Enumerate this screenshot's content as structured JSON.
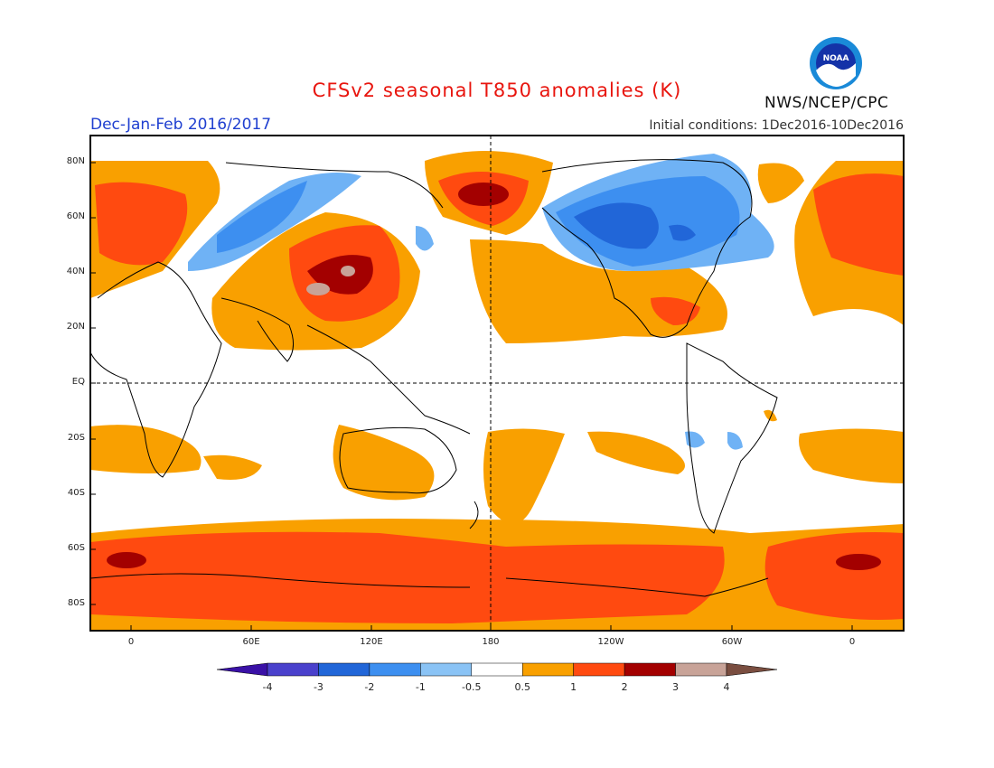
{
  "header": {
    "title": "CFSv2 seasonal T850 anomalies (K)",
    "period": "Dec-Jan-Feb 2016/2017",
    "initial_conditions": "Initial conditions: 1Dec2016-10Dec2016",
    "agency": "NWS/NCEP/CPC",
    "logo_text": "NOAA"
  },
  "map": {
    "lat_labels": [
      "80N",
      "60N",
      "40N",
      "20N",
      "EQ",
      "20S",
      "40S",
      "60S",
      "80S"
    ],
    "lon_labels": [
      "0",
      "60E",
      "120E",
      "180",
      "120W",
      "60W",
      "0"
    ],
    "colors": {
      "ocean_white": "#ffffff",
      "weak_warm": "#f9a000",
      "warm": "#ff4a10",
      "strong_warm": "#a30000",
      "very_warm": "#c8a398",
      "weak_cool": "#6fb2f5",
      "cool": "#3d8ff0",
      "strong_cool": "#2166d8",
      "very_cool": "#2d3fc0"
    }
  },
  "colorbar": {
    "labels": [
      "-4",
      "-3",
      "-2",
      "-1",
      "-0.5",
      "0.5",
      "1",
      "2",
      "3",
      "4"
    ],
    "colors": [
      "#3a11a6",
      "#4a41cc",
      "#2166d8",
      "#3d8ff0",
      "#8ac3f5",
      "#ffffff",
      "#f9a000",
      "#ff4a10",
      "#a30000",
      "#c8a398",
      "#7a4e40"
    ]
  }
}
